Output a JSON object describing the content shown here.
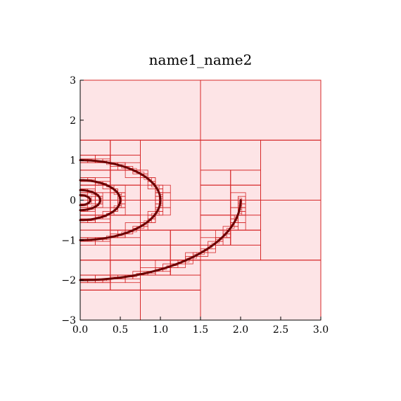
{
  "chart_data": {
    "type": "scatter",
    "title": "name1_name2",
    "xlabel": "",
    "ylabel": "",
    "xlim": [
      0,
      3
    ],
    "ylim": [
      -3,
      3
    ],
    "x_ticks": [
      0,
      0.5,
      1,
      1.5,
      2,
      2.5,
      3
    ],
    "x_tick_labels": [
      "0.0",
      "0.5",
      "1.0",
      "1.5",
      "2.0",
      "2.5",
      "3.0"
    ],
    "y_ticks": [
      -3,
      -2,
      -1,
      0,
      1,
      2,
      3
    ],
    "y_tick_labels": [
      "−3",
      "−2",
      "−1",
      "0",
      "1",
      "2",
      "3"
    ],
    "grid": false,
    "colors": {
      "cell_fill": "#fde4e6",
      "cell_stroke": "#d62728",
      "curve": "#6b0000"
    },
    "curves": [
      {
        "type": "arc",
        "center": [
          0,
          0
        ],
        "radius": 0.5,
        "theta_deg": [
          -90,
          90
        ]
      },
      {
        "type": "arc",
        "center": [
          0,
          0
        ],
        "radius": 1.0,
        "theta_deg": [
          -90,
          90
        ]
      },
      {
        "type": "arc",
        "center": [
          0,
          0
        ],
        "radius": 0.25,
        "theta_deg": [
          -90,
          90
        ]
      },
      {
        "type": "arc",
        "center": [
          0,
          0
        ],
        "radius": 0.125,
        "theta_deg": [
          -90,
          90
        ]
      },
      {
        "type": "arc",
        "center": [
          0,
          0
        ],
        "radius": 2.0,
        "theta_deg": [
          -90,
          0
        ]
      }
    ],
    "refinement_cells": [
      [
        0,
        -3,
        0.75,
        -2.25
      ],
      [
        0.75,
        -3,
        1.5,
        -2.25
      ],
      [
        1.5,
        -3,
        3,
        -1.5
      ],
      [
        1.5,
        1.5,
        3,
        3
      ],
      [
        0,
        1.5,
        1.5,
        3
      ],
      [
        0.375,
        0,
        0.75,
        1.5
      ],
      [
        0.75,
        0,
        1.5,
        1.5
      ],
      [
        1.5,
        0,
        2.25,
        1.5
      ],
      [
        2.25,
        0,
        3,
        1.5
      ],
      [
        2.25,
        -1.5,
        3,
        0
      ],
      [
        0.375,
        -1.125,
        0.75,
        -0.75
      ],
      [
        0.75,
        -0.75,
        1.5,
        0
      ],
      [
        1.5,
        -0.75,
        2.25,
        0
      ],
      [
        0,
        -1.5,
        0.75,
        -0.75
      ],
      [
        0.75,
        -1.5,
        1.5,
        -0.75
      ],
      [
        1.5,
        -1.5,
        2.25,
        -0.75
      ],
      [
        0,
        -2.25,
        0.75,
        -1.5
      ],
      [
        0.75,
        -2.25,
        1.5,
        -1.5
      ],
      [
        0,
        1.125,
        0.375,
        1.5
      ],
      [
        0,
        0.75,
        0.375,
        1.125
      ],
      [
        0.375,
        0.375,
        0.75,
        0.75
      ],
      [
        0,
        -0.375,
        0.375,
        0.375
      ],
      [
        0.375,
        -0.375,
        0.75,
        0.375
      ],
      [
        0,
        -0.75,
        0.375,
        -0.375
      ],
      [
        0.375,
        -0.75,
        0.75,
        -0.375
      ],
      [
        1.5,
        0.375,
        1.875,
        0.75
      ],
      [
        1.875,
        0.375,
        2.25,
        0.75
      ],
      [
        1.875,
        0,
        2.25,
        0.375
      ],
      [
        1.5,
        0,
        1.875,
        0.375
      ],
      [
        1.5,
        -0.375,
        1.875,
        0
      ],
      [
        1.875,
        -0.375,
        2.25,
        0
      ],
      [
        1.5,
        -0.75,
        1.875,
        -0.375
      ],
      [
        1.125,
        -1.125,
        1.5,
        -0.75
      ],
      [
        1.5,
        -1.125,
        1.875,
        -0.75
      ],
      [
        1.875,
        -1.125,
        2.25,
        -0.75
      ],
      [
        0.75,
        -1.125,
        1.125,
        -0.75
      ],
      [
        0.375,
        -1.5,
        0.75,
        -1.125
      ],
      [
        0.75,
        -1.5,
        1.125,
        -1.125
      ],
      [
        1.125,
        -1.5,
        1.5,
        -1.125
      ],
      [
        1.125,
        -1.875,
        1.5,
        -1.5
      ],
      [
        0.75,
        -1.875,
        1.125,
        -1.5
      ],
      [
        0.375,
        -1.875,
        0.75,
        -1.5
      ],
      [
        0,
        -1.875,
        0.375,
        -1.5
      ],
      [
        0,
        -2.25,
        0.375,
        -1.875
      ],
      [
        0.375,
        -2.25,
        0.75,
        -1.875
      ],
      [
        0,
        0.375,
        0.375,
        0.75
      ],
      [
        0.375,
        0.75,
        0.75,
        1.125
      ]
    ]
  }
}
